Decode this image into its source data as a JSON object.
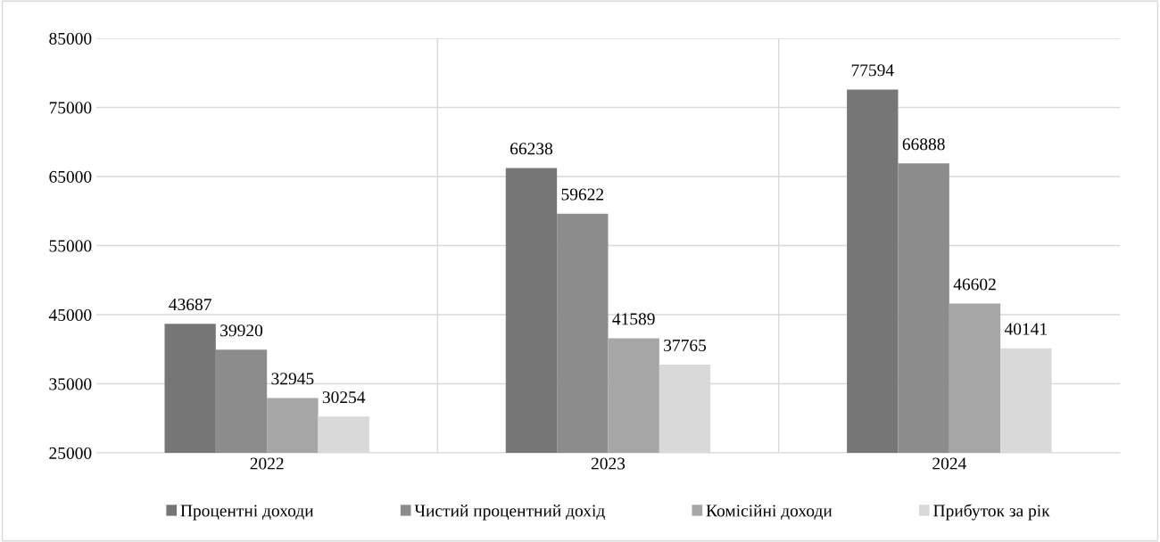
{
  "chart_data": {
    "type": "bar",
    "categories": [
      "2022",
      "2023",
      "2024"
    ],
    "series": [
      {
        "name": "Процентні доходи",
        "color": "#767676",
        "values": [
          43687,
          66238,
          77594
        ]
      },
      {
        "name": "Чистий процентний дохід",
        "color": "#8c8c8c",
        "values": [
          39920,
          59622,
          66888
        ]
      },
      {
        "name": "Комісійні доходи",
        "color": "#a6a6a6",
        "values": [
          32945,
          41589,
          46602
        ]
      },
      {
        "name": "Прибуток за рік",
        "color": "#d9d9d9",
        "values": [
          30254,
          37765,
          40141
        ]
      }
    ],
    "ylim": [
      25000,
      85000
    ],
    "yticks": [
      25000,
      35000,
      45000,
      55000,
      65000,
      75000,
      85000
    ],
    "grid": true,
    "legend": "bottom",
    "data_labels": true
  }
}
